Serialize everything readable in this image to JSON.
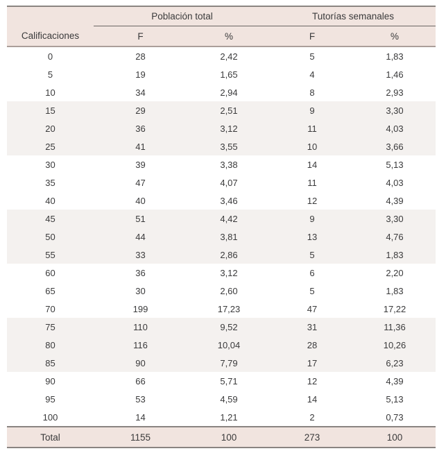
{
  "colors": {
    "header_bg": "#f1e4df",
    "stripe_bg": "#f4f1ef",
    "rule_dark": "#8a8481",
    "rule_medium": "#ab9e99",
    "rule_thin": "#6b6663",
    "text": "#3a3a3b"
  },
  "chart_data": {
    "type": "table",
    "row_header": "Calificaciones",
    "column_groups": [
      {
        "label": "Población total",
        "span": 2
      },
      {
        "label": "Tutorías semanales",
        "span": 2
      }
    ],
    "columns": [
      "F",
      "%",
      "F",
      "%"
    ],
    "rows": [
      [
        "0",
        "28",
        "2,42",
        "5",
        "1,83"
      ],
      [
        "5",
        "19",
        "1,65",
        "4",
        "1,46"
      ],
      [
        "10",
        "34",
        "2,94",
        "8",
        "2,93"
      ],
      [
        "15",
        "29",
        "2,51",
        "9",
        "3,30"
      ],
      [
        "20",
        "36",
        "3,12",
        "11",
        "4,03"
      ],
      [
        "25",
        "41",
        "3,55",
        "10",
        "3,66"
      ],
      [
        "30",
        "39",
        "3,38",
        "14",
        "5,13"
      ],
      [
        "35",
        "47",
        "4,07",
        "11",
        "4,03"
      ],
      [
        "40",
        "40",
        "3,46",
        "12",
        "4,39"
      ],
      [
        "45",
        "51",
        "4,42",
        "9",
        "3,30"
      ],
      [
        "50",
        "44",
        "3,81",
        "13",
        "4,76"
      ],
      [
        "55",
        "33",
        "2,86",
        "5",
        "1,83"
      ],
      [
        "60",
        "36",
        "3,12",
        "6",
        "2,20"
      ],
      [
        "65",
        "30",
        "2,60",
        "5",
        "1,83"
      ],
      [
        "70",
        "199",
        "17,23",
        "47",
        "17,22"
      ],
      [
        "75",
        "110",
        "9,52",
        "31",
        "11,36"
      ],
      [
        "80",
        "116",
        "10,04",
        "28",
        "10,26"
      ],
      [
        "85",
        "90",
        "7,79",
        "17",
        "6,23"
      ],
      [
        "90",
        "66",
        "5,71",
        "12",
        "4,39"
      ],
      [
        "95",
        "53",
        "4,59",
        "14",
        "5,13"
      ],
      [
        "100",
        "14",
        "1,21",
        "2",
        "0,73"
      ]
    ],
    "total_row": [
      "Total",
      "1155",
      "100",
      "273",
      "100"
    ]
  }
}
